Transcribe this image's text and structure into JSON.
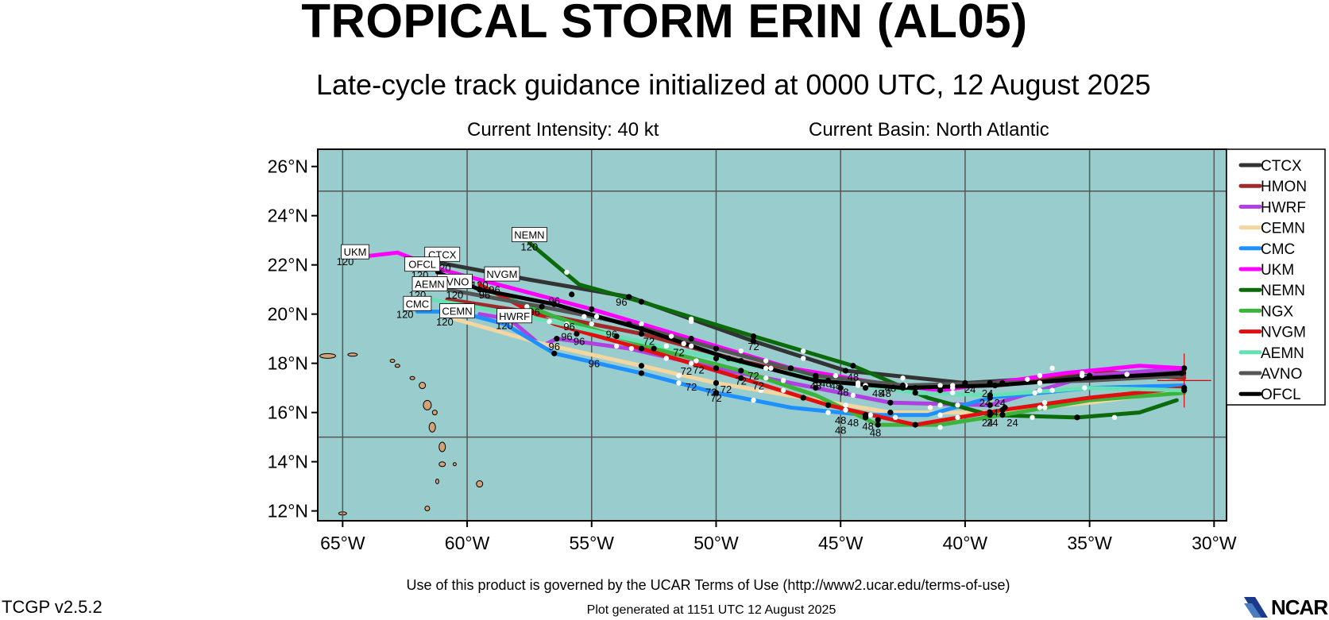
{
  "header": {
    "title": "TROPICAL STORM ERIN (AL05)",
    "subtitle": "Late-cycle track guidance initialized at 0000 UTC, 12 August 2025",
    "intensity": "Current Intensity: 40 kt",
    "basin": "Current Basin: North Atlantic"
  },
  "footer": {
    "terms": "Use of this product is governed by the UCAR Terms of Use (http://www2.ucar.edu/terms-of-use)",
    "generated": "Plot generated at 1151 UTC   12 August 2025",
    "version": "TCGP v2.5.2",
    "logo": "NCAR"
  },
  "colors": {
    "ocean": "#99cdcd",
    "land": "#d4a277",
    "grid": "#555555",
    "forecast_dot": "#000000",
    "initial_position_cross": "#e00000"
  },
  "chart_data": {
    "type": "line",
    "map": {
      "lon_range": [
        -66.0,
        -29.5
      ],
      "lat_range": [
        11.6,
        26.7
      ],
      "x_ticks": [
        -65,
        -60,
        -55,
        -50,
        -45,
        -40,
        -35,
        -30
      ],
      "x_tick_labels": [
        "65°W",
        "60°W",
        "55°W",
        "50°W",
        "45°W",
        "40°W",
        "35°W",
        "30°W"
      ],
      "y_ticks": [
        12,
        14,
        16,
        18,
        20,
        22,
        24,
        26
      ],
      "y_tick_labels": [
        "12°N",
        "14°N",
        "16°N",
        "18°N",
        "20°N",
        "22°N",
        "24°N",
        "26°N"
      ],
      "grid": true,
      "grid_lons": [
        -65,
        -60,
        -55,
        -50,
        -45,
        -40,
        -35,
        -30
      ],
      "grid_lats": [
        15,
        25
      ],
      "legend_placement": "right",
      "initial_position": {
        "lon": -31.2,
        "lat": 17.3
      }
    },
    "series": [
      {
        "name": "CTCX",
        "color": "#333333",
        "lon": [
          -31.2,
          -35,
          -40,
          -44.8,
          -48.5,
          -53.5,
          -57.5,
          -61.2
        ],
        "lat": [
          17.7,
          17.5,
          17.2,
          17.7,
          18.9,
          20.7,
          21.4,
          22.1
        ],
        "labels": [],
        "end_label": "120"
      },
      {
        "name": "HMON",
        "color": "#9e2a2a",
        "lon": [
          -31.2,
          -35,
          -38.5,
          -42,
          -45.5,
          -49,
          -53,
          -57,
          -60.8
        ],
        "lat": [
          17.4,
          17.7,
          17.2,
          17.0,
          17.3,
          18.1,
          19.2,
          20.0,
          20.6
        ],
        "labels": [],
        "end_label": ""
      },
      {
        "name": "HWRF",
        "color": "#b040e0",
        "lon": [
          -31.2,
          -35,
          -39,
          -43,
          -46,
          -50,
          -53.5,
          -56.4,
          -57,
          -58.3,
          -59.5
        ],
        "lat": [
          17.8,
          17.5,
          16.3,
          16.4,
          17.0,
          17.8,
          18.6,
          19.0,
          18.7,
          19.8,
          20.0
        ],
        "labels": [
          {
            "t": "96",
            "lon": -56.5,
            "lat": 18.7
          }
        ],
        "end_label": "120"
      },
      {
        "name": "CEMN",
        "color": "#f5d5a0",
        "lon": [
          -31.2,
          -35,
          -39,
          -43,
          -46.5,
          -50,
          -53,
          -57,
          -60.5
        ],
        "lat": [
          16.9,
          16.4,
          16.0,
          16.0,
          16.6,
          17.2,
          17.9,
          18.8,
          19.8
        ],
        "labels": [],
        "end_label": "120"
      },
      {
        "name": "CMC",
        "color": "#1e90ff",
        "lon": [
          -31.2,
          -35,
          -39,
          -41.5,
          -44,
          -47,
          -50,
          -53,
          -56.5,
          -58.5,
          -60.4,
          -62
        ],
        "lat": [
          17.1,
          17.0,
          16.6,
          15.9,
          15.9,
          16.2,
          16.8,
          17.6,
          18.4,
          19.6,
          20.1,
          20.1
        ],
        "labels": [
          {
            "t": "72",
            "lon": -50,
            "lat": 16.6
          },
          {
            "t": "48",
            "lon": -45.0,
            "lat": 15.7
          }
        ],
        "end_label": "120"
      },
      {
        "name": "UKM",
        "color": "#ff00ff",
        "lon": [
          -31.2,
          -33,
          -36,
          -41,
          -43.5,
          -47,
          -51,
          -55,
          -58,
          -61,
          -62.8,
          -64.5
        ],
        "lat": [
          17.8,
          17.9,
          17.6,
          16.9,
          17.2,
          17.8,
          19.0,
          20.2,
          21.0,
          21.8,
          22.5,
          22.3
        ],
        "labels": [],
        "end_label": "120"
      },
      {
        "name": "NEMN",
        "color": "#0b6b0b",
        "lon": [
          -31.5,
          -33,
          -35.5,
          -39,
          -41.5,
          -44.5,
          -48.5,
          -53,
          -55.5,
          -57.5
        ],
        "lat": [
          16.5,
          16.0,
          15.8,
          15.9,
          16.6,
          17.9,
          19.1,
          20.5,
          21.2,
          22.9
        ],
        "labels": [
          {
            "t": "72",
            "lon": -48.5,
            "lat": 18.7
          },
          {
            "t": "96",
            "lon": -53.8,
            "lat": 20.5
          },
          {
            "t": "48",
            "lon": -43.5,
            "lat": 16.8
          }
        ],
        "end_label": "120"
      },
      {
        "name": "NGX",
        "color": "#3cb43c",
        "lon": [
          -31.2,
          -35,
          -38.5,
          -41,
          -43.5,
          -46,
          -49,
          -52.5,
          -56.5,
          -59.5
        ],
        "lat": [
          16.8,
          16.5,
          15.9,
          15.5,
          15.5,
          16.7,
          17.7,
          18.6,
          19.9,
          21.1
        ],
        "labels": [],
        "end_label": ""
      },
      {
        "name": "NVGM",
        "color": "#e01010",
        "lon": [
          -31.2,
          -35,
          -38.5,
          -42,
          -45.5,
          -49,
          -53,
          -56.5,
          -59.5
        ],
        "lat": [
          17.0,
          16.6,
          16.1,
          15.5,
          16.3,
          17.4,
          18.6,
          19.6,
          21.2
        ],
        "labels": [
          {
            "t": "96",
            "lon": -59.3,
            "lat": 20.8
          }
        ],
        "end_label": "120"
      },
      {
        "name": "AEMN",
        "color": "#66e0b4",
        "lon": [
          -31.2,
          -35,
          -39,
          -42,
          -46,
          -50,
          -54,
          -58,
          -61.5
        ],
        "lat": [
          16.9,
          17.0,
          16.7,
          16.8,
          17.4,
          18.2,
          19.1,
          20.0,
          20.6
        ],
        "labels": [],
        "end_label": "120"
      },
      {
        "name": "AVNO",
        "color": "#555555",
        "lon": [
          -31.2,
          -35,
          -39,
          -42.5,
          -46,
          -50,
          -53.5,
          -57,
          -60.8
        ],
        "lat": [
          17.5,
          17.3,
          17.2,
          17.1,
          17.5,
          18.6,
          19.6,
          20.3,
          21.0
        ],
        "labels": [
          {
            "t": "72",
            "lon": -51.2,
            "lat": 17.7
          },
          {
            "t": "48",
            "lon": -46.0,
            "lat": 17.1
          }
        ],
        "end_label": "120"
      },
      {
        "name": "OFCL",
        "color": "#000000",
        "lon": [
          -31.2,
          -35,
          -38.8,
          -42.5,
          -46,
          -49.5,
          -53,
          -56.5,
          -59.5,
          -61.2
        ],
        "lat": [
          17.6,
          17.4,
          17.1,
          17.0,
          17.3,
          18.2,
          19.4,
          20.4,
          21.0,
          21.7
        ],
        "labels": [
          {
            "t": "72",
            "lon": -48.3,
            "lat": 17.1
          },
          {
            "t": "96",
            "lon": -56.0,
            "lat": 19.1
          },
          {
            "t": "24",
            "lon": -38.6,
            "lat": 16.4
          }
        ],
        "end_label": "120"
      }
    ],
    "track_labels": [
      {
        "t": "UKM",
        "lon": -64.5,
        "lat": 22.5
      },
      {
        "t": "CTCX",
        "lon": -61.0,
        "lat": 22.4
      },
      {
        "t": "OFCL",
        "lon": -61.8,
        "lat": 22.0
      },
      {
        "t": "NEMN",
        "lon": -57.5,
        "lat": 23.2
      },
      {
        "t": "NVGM",
        "lon": -58.6,
        "lat": 21.6
      },
      {
        "t": "AVNO",
        "lon": -60.5,
        "lat": 21.3
      },
      {
        "t": "AEMN",
        "lon": -61.5,
        "lat": 21.2
      },
      {
        "t": "CMC",
        "lon": -62.0,
        "lat": 20.4
      },
      {
        "t": "CEMN",
        "lon": -60.4,
        "lat": 20.1
      },
      {
        "t": "HWRF",
        "lon": -58.1,
        "lat": 19.9
      }
    ],
    "hour_labels": [
      {
        "t": "120",
        "lon": -64.9,
        "lat": 22.15
      },
      {
        "t": "120",
        "lon": -61.9,
        "lat": 21.6
      },
      {
        "t": "120",
        "lon": -61.0,
        "lat": 21.9
      },
      {
        "t": "120",
        "lon": -57.5,
        "lat": 22.75
      },
      {
        "t": "120",
        "lon": -62.0,
        "lat": 20.8
      },
      {
        "t": "120",
        "lon": -60.5,
        "lat": 20.8
      },
      {
        "t": "120",
        "lon": -59.5,
        "lat": 21.2
      },
      {
        "t": "120",
        "lon": -62.5,
        "lat": 20.0
      },
      {
        "t": "120",
        "lon": -60.9,
        "lat": 19.7
      },
      {
        "t": "120",
        "lon": -58.5,
        "lat": 19.55
      },
      {
        "t": "96",
        "lon": -58.9,
        "lat": 21.0
      },
      {
        "t": "96",
        "lon": -57.3,
        "lat": 20.1
      },
      {
        "t": "96",
        "lon": -56.5,
        "lat": 20.55
      },
      {
        "t": "96",
        "lon": -55.9,
        "lat": 19.5
      },
      {
        "t": "96",
        "lon": -54.9,
        "lat": 18.0
      },
      {
        "t": "96",
        "lon": -54.2,
        "lat": 19.2
      },
      {
        "t": "96",
        "lon": -55.5,
        "lat": 18.9
      },
      {
        "t": "72",
        "lon": -52.7,
        "lat": 18.9
      },
      {
        "t": "72",
        "lon": -51.5,
        "lat": 18.45
      },
      {
        "t": "72",
        "lon": -50.7,
        "lat": 17.75
      },
      {
        "t": "72",
        "lon": -51.0,
        "lat": 17.05
      },
      {
        "t": "72",
        "lon": -50.2,
        "lat": 16.85
      },
      {
        "t": "72",
        "lon": -49.6,
        "lat": 16.95
      },
      {
        "t": "72",
        "lon": -49.0,
        "lat": 17.3
      },
      {
        "t": "72",
        "lon": -48.5,
        "lat": 17.5
      },
      {
        "t": "48",
        "lon": -45.6,
        "lat": 17.2
      },
      {
        "t": "48",
        "lon": -45.2,
        "lat": 17.1
      },
      {
        "t": "48",
        "lon": -44.5,
        "lat": 17.45
      },
      {
        "t": "48",
        "lon": -44.9,
        "lat": 16.85
      },
      {
        "t": "48",
        "lon": -45.0,
        "lat": 15.3
      },
      {
        "t": "48",
        "lon": -44.5,
        "lat": 15.6
      },
      {
        "t": "48",
        "lon": -43.9,
        "lat": 15.45
      },
      {
        "t": "48",
        "lon": -43.6,
        "lat": 15.2
      },
      {
        "t": "48",
        "lon": -43.2,
        "lat": 16.8
      },
      {
        "t": "48",
        "lon": -43.0,
        "lat": 17.0
      },
      {
        "t": "24",
        "lon": -39.8,
        "lat": 16.95
      },
      {
        "t": "24",
        "lon": -39.1,
        "lat": 16.8
      },
      {
        "t": "24",
        "lon": -39.2,
        "lat": 16.4
      },
      {
        "t": "24",
        "lon": -38.9,
        "lat": 16.0
      },
      {
        "t": "24",
        "lon": -39.1,
        "lat": 15.6
      },
      {
        "t": "24",
        "lon": -38.9,
        "lat": 15.6
      },
      {
        "t": "24",
        "lon": -38.1,
        "lat": 15.6
      }
    ],
    "forecast_dots": [
      [
        -35,
        17.5
      ],
      [
        -40,
        17.2
      ],
      [
        -44.8,
        17.7
      ],
      [
        -48.5,
        18.9
      ],
      [
        -53.5,
        20.7
      ],
      [
        -38.5,
        17.2
      ],
      [
        -42,
        17.0
      ],
      [
        -45.5,
        17.3
      ],
      [
        -49,
        18.1
      ],
      [
        -53,
        19.2
      ],
      [
        -39,
        16.3
      ],
      [
        -43,
        16.4
      ],
      [
        -46,
        17.0
      ],
      [
        -50,
        17.8
      ],
      [
        -56.4,
        19.0
      ],
      [
        -39,
        16.0
      ],
      [
        -43,
        16.0
      ],
      [
        -46.5,
        16.6
      ],
      [
        -50,
        17.2
      ],
      [
        -53,
        17.9
      ],
      [
        -39,
        16.6
      ],
      [
        -44,
        15.9
      ],
      [
        -50,
        16.8
      ],
      [
        -53,
        17.6
      ],
      [
        -56.5,
        18.4
      ],
      [
        -41,
        16.9
      ],
      [
        -47,
        17.8
      ],
      [
        -51,
        19.0
      ],
      [
        -55,
        20.2
      ],
      [
        -35.5,
        15.8
      ],
      [
        -39,
        15.9
      ],
      [
        -44.5,
        17.9
      ],
      [
        -48.5,
        19.1
      ],
      [
        -53,
        20.5
      ],
      [
        -38.5,
        15.9
      ],
      [
        -43.5,
        15.5
      ],
      [
        -49,
        17.7
      ],
      [
        -52.5,
        18.6
      ],
      [
        -38.5,
        16.1
      ],
      [
        -42,
        15.5
      ],
      [
        -45.5,
        16.3
      ],
      [
        -49,
        17.4
      ],
      [
        -53,
        18.6
      ],
      [
        -39,
        16.7
      ],
      [
        -42,
        16.8
      ],
      [
        -46,
        17.4
      ],
      [
        -50,
        18.2
      ],
      [
        -54,
        19.1
      ],
      [
        -39,
        17.2
      ],
      [
        -42.5,
        17.1
      ],
      [
        -46,
        17.5
      ],
      [
        -50,
        18.6
      ],
      [
        -53.5,
        19.6
      ],
      [
        -38.8,
        17.1
      ],
      [
        -42.5,
        17.0
      ],
      [
        -46,
        17.3
      ],
      [
        -49.5,
        18.2
      ],
      [
        -53,
        19.4
      ],
      [
        -56.5,
        20.4
      ],
      [
        -59.5,
        21.0
      ],
      [
        -57,
        20.3
      ],
      [
        -55.8,
        20.8
      ],
      [
        -55.6,
        19.2
      ],
      [
        -44,
        15.8
      ],
      [
        -43.5,
        15.7
      ],
      [
        -45,
        17.0
      ],
      [
        -44,
        17.0
      ],
      [
        -38.4,
        16.2
      ],
      [
        -31.2,
        17.0
      ],
      [
        -31.2,
        16.9
      ],
      [
        -31.3,
        17.6
      ],
      [
        -31.2,
        17.8
      ]
    ],
    "sixhour_dots": [
      [
        -33.5,
        17.55
      ],
      [
        -37.5,
        17.35
      ],
      [
        -42.5,
        17.4
      ],
      [
        -46.5,
        18.2
      ],
      [
        -51,
        19.7
      ],
      [
        -37,
        17.5
      ],
      [
        -40.5,
        17.1
      ],
      [
        -44,
        17.1
      ],
      [
        -47,
        17.8
      ],
      [
        -51,
        18.7
      ],
      [
        -55,
        19.6
      ],
      [
        -37,
        16.9
      ],
      [
        -41,
        16.3
      ],
      [
        -44.5,
        16.7
      ],
      [
        -48,
        17.4
      ],
      [
        -52,
        18.2
      ],
      [
        -37,
        16.2
      ],
      [
        -41,
        15.9
      ],
      [
        -44.8,
        16.3
      ],
      [
        -48.2,
        16.9
      ],
      [
        -51.5,
        17.5
      ],
      [
        -36.5,
        16.9
      ],
      [
        -40.3,
        16.3
      ],
      [
        -42.8,
        15.8
      ],
      [
        -45.5,
        16.0
      ],
      [
        -48.5,
        16.5
      ],
      [
        -51.5,
        17.2
      ],
      [
        -36.5,
        17.8
      ],
      [
        -40,
        17.2
      ],
      [
        -42.4,
        17.1
      ],
      [
        -45.2,
        17.5
      ],
      [
        -49,
        18.5
      ],
      [
        -53,
        19.6
      ],
      [
        -34,
        15.8
      ],
      [
        -37.3,
        15.8
      ],
      [
        -41.4,
        16.2
      ],
      [
        -46.5,
        18.5
      ],
      [
        -51,
        19.8
      ],
      [
        -56,
        21.7
      ],
      [
        -36.8,
        16.2
      ],
      [
        -41,
        15.4
      ],
      [
        -44.8,
        16.1
      ],
      [
        -47.3,
        17.3
      ],
      [
        -50.8,
        18.1
      ],
      [
        -36.8,
        16.4
      ],
      [
        -40.3,
        15.8
      ],
      [
        -43.8,
        15.9
      ],
      [
        -47.3,
        16.9
      ],
      [
        -51,
        18.0
      ],
      [
        -35.2,
        17.0
      ],
      [
        -37.2,
        16.8
      ],
      [
        -40.5,
        16.8
      ],
      [
        -44,
        17.0
      ],
      [
        -48,
        17.8
      ],
      [
        -52,
        18.7
      ],
      [
        -56,
        19.6
      ],
      [
        -37,
        17.2
      ],
      [
        -41,
        17.1
      ],
      [
        -44.3,
        17.2
      ],
      [
        -48,
        18.1
      ],
      [
        -51.8,
        19.1
      ],
      [
        -55.3,
        19.9
      ],
      [
        -37,
        17.2
      ],
      [
        -40.5,
        17.0
      ],
      [
        -44.3,
        17.1
      ],
      [
        -47.8,
        17.8
      ],
      [
        -51.3,
        18.8
      ],
      [
        -54.8,
        19.9
      ],
      [
        -35.3,
        17.6
      ],
      [
        -35.3,
        17.5
      ],
      [
        -54,
        18.7
      ],
      [
        -53.4,
        18.6
      ],
      [
        -57.6,
        20.3
      ],
      [
        -56.7,
        19.7
      ]
    ]
  },
  "legend": {
    "items": [
      "CTCX",
      "HMON",
      "HWRF",
      "CEMN",
      "CMC",
      "UKM",
      "NEMN",
      "NGX",
      "NVGM",
      "AEMN",
      "AVNO",
      "OFCL"
    ]
  }
}
